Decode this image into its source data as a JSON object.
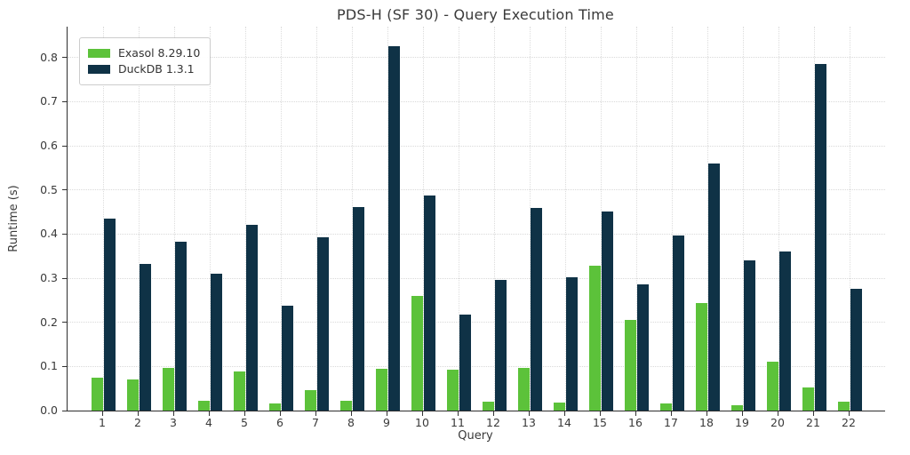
{
  "chart_data": {
    "type": "bar",
    "title": "PDS-H (SF 30) - Query Execution Time",
    "xlabel": "Query",
    "ylabel": "Runtime (s)",
    "categories": [
      "1",
      "2",
      "3",
      "4",
      "5",
      "6",
      "7",
      "8",
      "9",
      "10",
      "11",
      "12",
      "13",
      "14",
      "15",
      "16",
      "17",
      "18",
      "19",
      "20",
      "21",
      "22"
    ],
    "series": [
      {
        "name": "Exasol 8.29.10",
        "color": "#5cc23a",
        "values": [
          0.075,
          0.07,
          0.096,
          0.022,
          0.089,
          0.016,
          0.047,
          0.023,
          0.094,
          0.26,
          0.092,
          0.021,
          0.096,
          0.018,
          0.328,
          0.206,
          0.017,
          0.244,
          0.012,
          0.111,
          0.053,
          0.02
        ]
      },
      {
        "name": "DuckDB 1.3.1",
        "color": "#0f3246",
        "values": [
          0.435,
          0.332,
          0.383,
          0.31,
          0.421,
          0.237,
          0.392,
          0.461,
          0.825,
          0.487,
          0.218,
          0.297,
          0.459,
          0.302,
          0.451,
          0.286,
          0.396,
          0.559,
          0.341,
          0.361,
          0.785,
          0.275
        ]
      }
    ],
    "yticks": [
      "0.0",
      "0.1",
      "0.2",
      "0.3",
      "0.4",
      "0.5",
      "0.6",
      "0.7",
      "0.8"
    ],
    "ylim": [
      0,
      0.87
    ],
    "grid": true,
    "legend_position": "upper-left"
  },
  "colors": {
    "grid": "#d9d9d9",
    "spine": "#2e2e2e",
    "text": "#3a3a3a",
    "background": "#ffffff"
  }
}
